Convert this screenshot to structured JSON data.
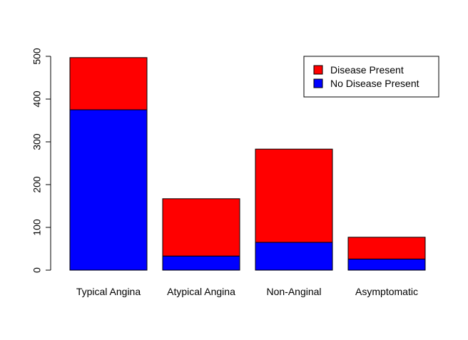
{
  "chart_data": {
    "type": "bar",
    "stacked": true,
    "title": "",
    "xlabel": "",
    "ylabel": "",
    "categories": [
      "Typical Angina",
      "Atypical Angina",
      "Non-Anginal",
      "Asymptomatic"
    ],
    "series": [
      {
        "name": "No Disease Present",
        "values": [
          375,
          33,
          65,
          26
        ],
        "color": "#0000FF"
      },
      {
        "name": "Disease Present",
        "values": [
          122,
          134,
          218,
          51
        ],
        "color": "#FF0000"
      }
    ],
    "ylim": [
      0,
      500
    ],
    "yticks": [
      0,
      100,
      200,
      300,
      400,
      500
    ],
    "legend": {
      "position": "top-right",
      "entries": [
        {
          "label": "Disease Present",
          "color": "#FF0000"
        },
        {
          "label": "No Disease Present",
          "color": "#0000FF"
        }
      ]
    },
    "grid": false
  }
}
